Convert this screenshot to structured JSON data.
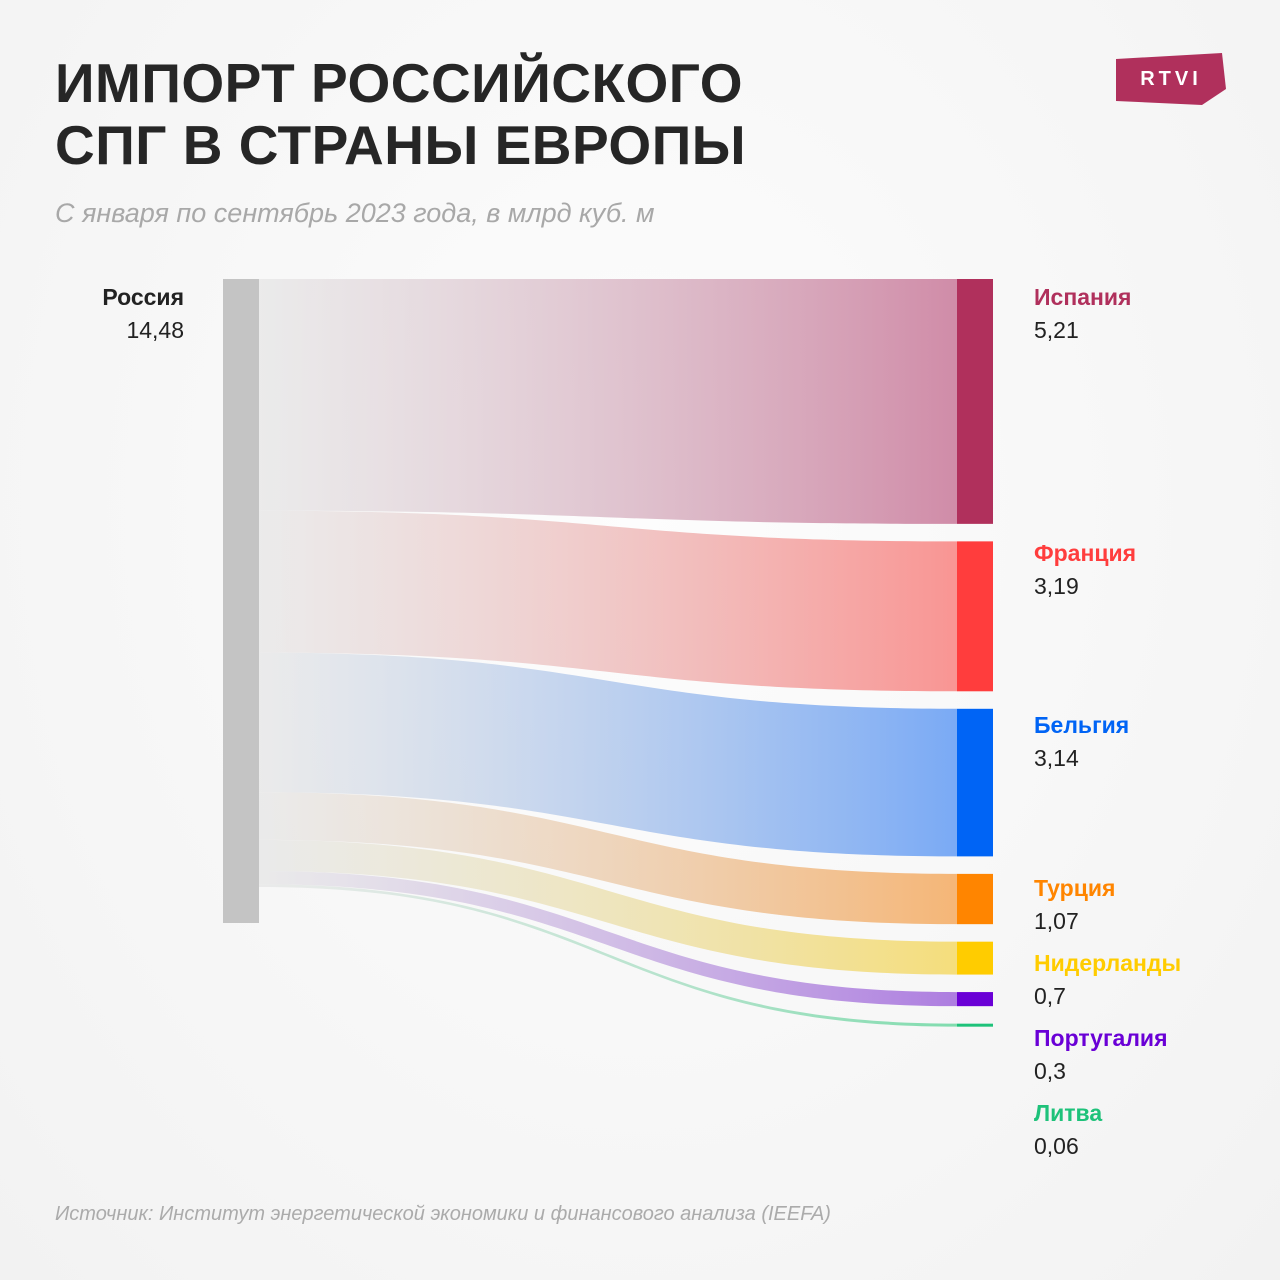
{
  "title_lines": [
    "ИМПОРТ РОССИЙСКОГО",
    "СПГ В СТРАНЫ ЕВРОПЫ"
  ],
  "subtitle": "С января по сентябрь 2023 года, в млрд куб. м",
  "logo": "RTVI",
  "logo_color": "#b0305c",
  "footer": "Источник: Институт энергетической экономики и финансового анализа (IEEFA)",
  "chart_data": {
    "type": "sankey",
    "title": "ИМПОРТ РОССИЙСКОГО СПГ В СТРАНЫ ЕВРОПЫ",
    "unit": "млрд куб. м",
    "source": {
      "name": "Россия",
      "value": 14.48,
      "value_label": "14,48",
      "color": "#c4c4c4"
    },
    "targets": [
      {
        "name": "Испания",
        "value": 5.21,
        "value_label": "5,21",
        "color": "#b0305c",
        "flow_color": "#d08ca8"
      },
      {
        "name": "Франция",
        "value": 3.19,
        "value_label": "3,19",
        "color": "#ff3d3d",
        "flow_color": "#f99593"
      },
      {
        "name": "Бельгия",
        "value": 3.14,
        "value_label": "3,14",
        "color": "#0064f5",
        "flow_color": "#7aaaf5"
      },
      {
        "name": "Турция",
        "value": 1.07,
        "value_label": "1,07",
        "color": "#ff8500",
        "flow_color": "#f5b677"
      },
      {
        "name": "Нидерланды",
        "value": 0.7,
        "value_label": "0,7",
        "color": "#ffcc00",
        "flow_color": "#f5de7c"
      },
      {
        "name": "Португалия",
        "value": 0.3,
        "value_label": "0,3",
        "color": "#6a00d6",
        "flow_color": "#ad7de0"
      },
      {
        "name": "Литва",
        "value": 0.06,
        "value_label": "0,06",
        "color": "#1ec27a",
        "flow_color": "#80dcae"
      }
    ]
  }
}
